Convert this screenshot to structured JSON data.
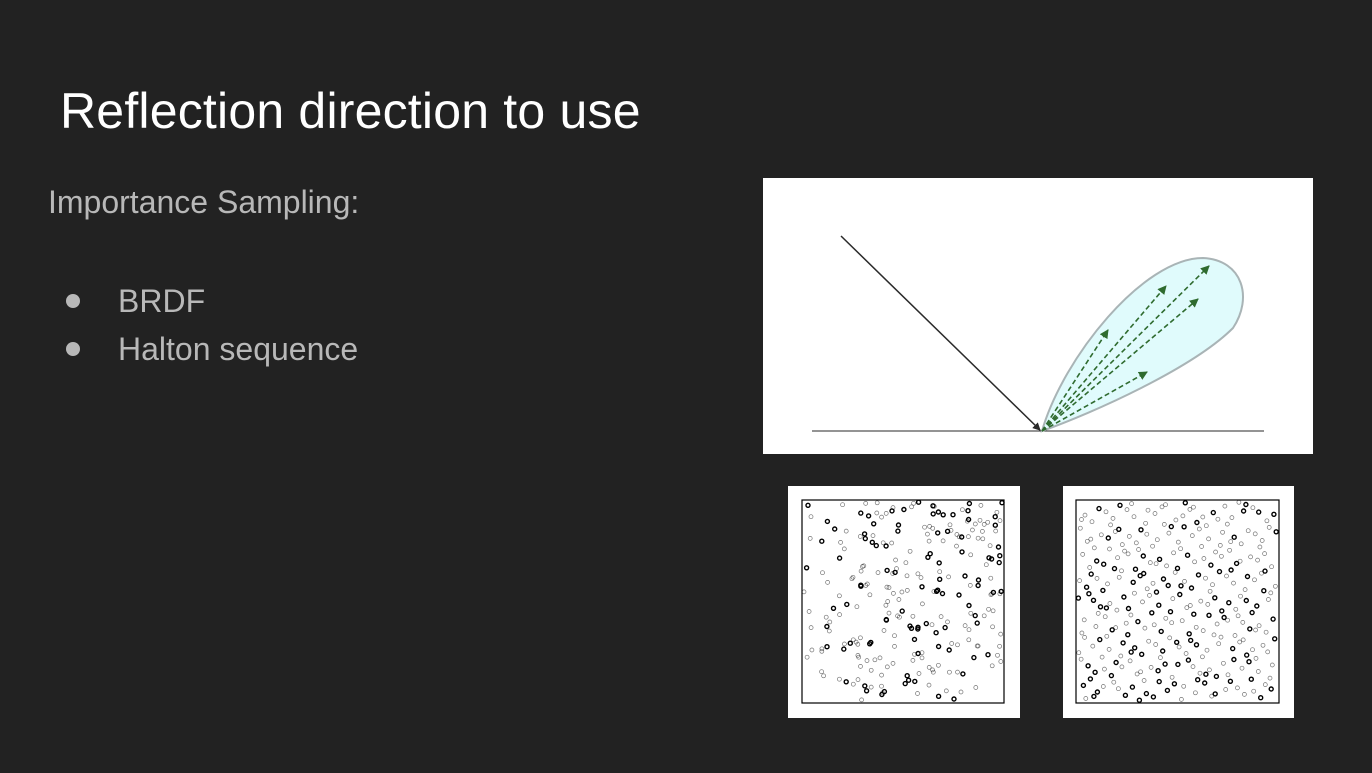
{
  "slide": {
    "title": "Reflection direction to use",
    "subtitle": "Importance Sampling:",
    "bullets": [
      {
        "label": "BRDF"
      },
      {
        "label": "Halton sequence"
      }
    ]
  },
  "figures": {
    "brdf_lobe": {
      "lobe_fill": "#e0fbfc",
      "lobe_stroke": "#a9b4b6",
      "ray_color": "#2a2a2a",
      "sample_arrow_color": "#2f6b2f",
      "sample_arrow_count": 5
    },
    "random_samples": {
      "point_color": "#000000"
    },
    "halton_samples": {
      "point_color": "#000000"
    }
  }
}
